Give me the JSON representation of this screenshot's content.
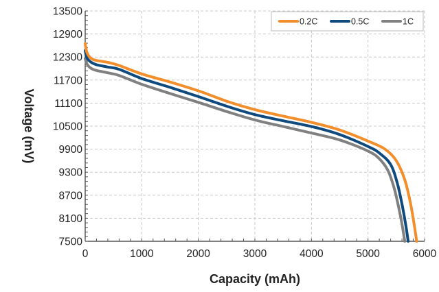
{
  "chart_data": {
    "type": "line",
    "xlabel": "Capacity (mAh)",
    "ylabel": "Voltage (mV)",
    "xlim": [
      0,
      6000
    ],
    "ylim": [
      7500,
      13500
    ],
    "xticks": [
      0,
      1000,
      2000,
      3000,
      4000,
      5000,
      6000
    ],
    "yticks": [
      7500,
      8100,
      8700,
      9300,
      9900,
      10500,
      11100,
      11700,
      12300,
      12900,
      13500
    ],
    "grid": true,
    "legend_position": "top-right",
    "series": [
      {
        "name": "0.2C",
        "color": "#F28E2B",
        "x": [
          0,
          30,
          100,
          200,
          400,
          600,
          1000,
          1500,
          2000,
          2500,
          3000,
          3500,
          4000,
          4500,
          5000,
          5300,
          5500,
          5650,
          5750,
          5820,
          5860
        ],
        "y": [
          12650,
          12420,
          12270,
          12210,
          12160,
          12080,
          11860,
          11650,
          11420,
          11150,
          10930,
          10760,
          10600,
          10400,
          10110,
          9900,
          9600,
          9100,
          8500,
          7900,
          7500
        ]
      },
      {
        "name": "0.5C",
        "color": "#0E4A7E",
        "x": [
          0,
          30,
          100,
          200,
          400,
          600,
          1000,
          1500,
          2000,
          2500,
          3000,
          3500,
          4000,
          4500,
          5000,
          5200,
          5400,
          5520,
          5610,
          5670,
          5710
        ],
        "y": [
          12470,
          12280,
          12170,
          12100,
          12040,
          11980,
          11740,
          11510,
          11270,
          11020,
          10800,
          10640,
          10490,
          10280,
          9970,
          9800,
          9500,
          9000,
          8400,
          7900,
          7500
        ]
      },
      {
        "name": "1C",
        "color": "#808080",
        "x": [
          0,
          30,
          100,
          200,
          400,
          600,
          1000,
          1500,
          2000,
          2500,
          3000,
          3500,
          4000,
          4500,
          5000,
          5200,
          5350,
          5460,
          5540,
          5600,
          5650
        ],
        "y": [
          12260,
          12120,
          12010,
          11950,
          11890,
          11820,
          11590,
          11350,
          11120,
          10880,
          10660,
          10490,
          10320,
          10140,
          9850,
          9650,
          9350,
          8900,
          8400,
          7950,
          7500
        ]
      }
    ]
  }
}
